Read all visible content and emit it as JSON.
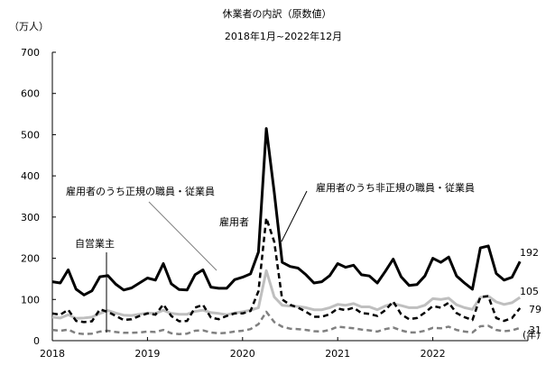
{
  "chart_data": {
    "type": "line",
    "title": "休業者の内訳（原数値）",
    "subtitle": "2018年1月~2022年12月",
    "ylabel": "（万人）",
    "xlabel": "(年)",
    "ylim": [
      0,
      700
    ],
    "yticks": [
      0,
      100,
      200,
      300,
      400,
      500,
      600,
      700
    ],
    "xlim": [
      2018,
      2023
    ],
    "xticks": [
      "2018",
      "2019",
      "2020",
      "2021",
      "2022"
    ],
    "grid": false,
    "legend": "inline labels",
    "series": [
      {
        "name": "雇用者",
        "color": "#000000",
        "dash": "solid",
        "width": 3,
        "values": [
          143,
          140,
          172,
          125,
          111,
          121,
          155,
          158,
          137,
          123,
          128,
          140,
          152,
          147,
          187,
          138,
          124,
          123,
          160,
          172,
          130,
          127,
          127,
          148,
          154,
          162,
          215,
          515,
          360,
          190,
          180,
          176,
          160,
          140,
          143,
          158,
          187,
          178,
          183,
          160,
          157,
          140,
          168,
          198,
          155,
          134,
          136,
          157,
          200,
          190,
          203,
          157,
          140,
          125,
          225,
          230,
          163,
          147,
          154,
          192
        ]
      },
      {
        "name": "雇用者のうち非正規の職員・従業員",
        "color": "#000000",
        "dash": "dashed",
        "width": 2.5,
        "values": [
          66,
          63,
          75,
          48,
          45,
          47,
          76,
          70,
          60,
          50,
          52,
          60,
          66,
          63,
          88,
          60,
          47,
          48,
          80,
          87,
          56,
          52,
          60,
          66,
          66,
          72,
          120,
          298,
          240,
          100,
          87,
          80,
          70,
          58,
          58,
          64,
          78,
          74,
          80,
          67,
          65,
          60,
          74,
          95,
          64,
          52,
          55,
          68,
          84,
          80,
          92,
          67,
          57,
          50,
          106,
          108,
          55,
          48,
          55,
          79
        ]
      },
      {
        "name": "雇用者のうち正規の職員・従業員",
        "color": "#bfbfbf",
        "dash": "solid",
        "width": 3,
        "values": [
          57,
          55,
          63,
          54,
          55,
          57,
          66,
          73,
          67,
          62,
          61,
          64,
          67,
          66,
          74,
          66,
          64,
          64,
          71,
          74,
          68,
          66,
          63,
          67,
          70,
          74,
          80,
          170,
          106,
          86,
          84,
          83,
          80,
          75,
          75,
          80,
          88,
          86,
          90,
          82,
          82,
          75,
          84,
          90,
          85,
          80,
          80,
          86,
          102,
          100,
          103,
          87,
          80,
          76,
          105,
          108,
          94,
          88,
          92,
          105
        ]
      },
      {
        "name": "自営業主",
        "color": "#808080",
        "dash": "dashed",
        "width": 2.5,
        "values": [
          26,
          24,
          27,
          18,
          16,
          17,
          22,
          24,
          21,
          19,
          19,
          20,
          22,
          21,
          26,
          18,
          16,
          17,
          24,
          25,
          20,
          18,
          19,
          22,
          24,
          28,
          40,
          70,
          45,
          34,
          29,
          28,
          26,
          23,
          22,
          26,
          34,
          32,
          30,
          27,
          25,
          22,
          28,
          32,
          25,
          20,
          20,
          24,
          31,
          30,
          34,
          26,
          22,
          20,
          35,
          36,
          26,
          23,
          25,
          31
        ]
      }
    ],
    "end_labels": [
      "192",
      "105",
      "79",
      "31"
    ]
  }
}
